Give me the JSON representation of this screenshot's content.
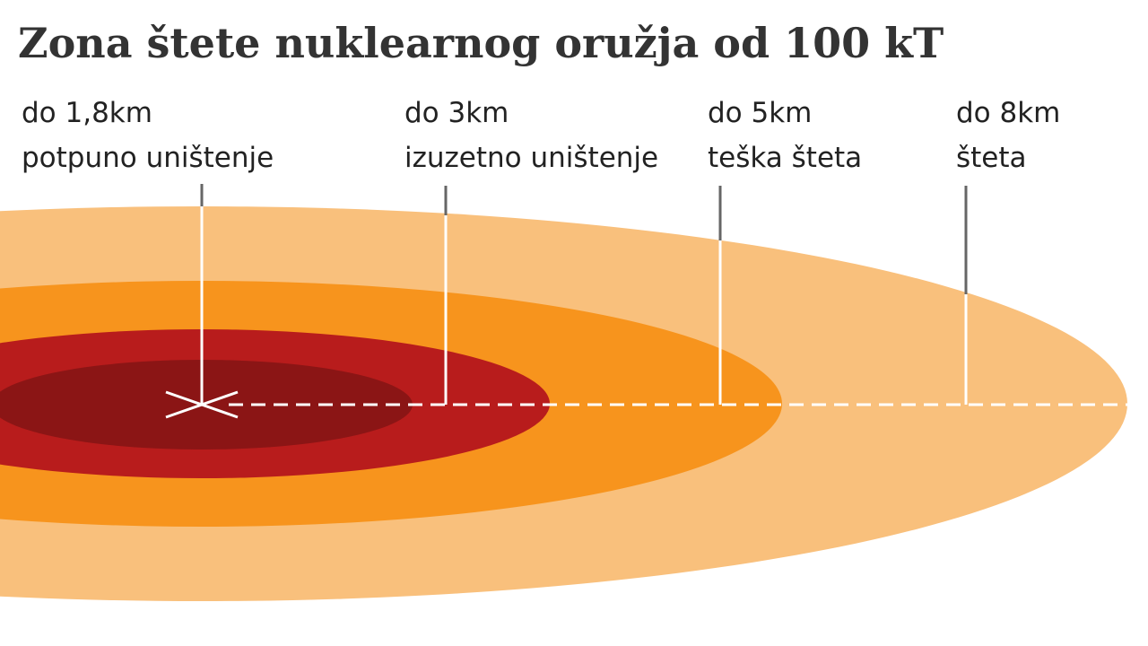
{
  "title": "Zona štete nuklearnog oružja od 100 kT",
  "zones": [
    {
      "distance": "do 1,8km",
      "description": "potpuno uništenje"
    },
    {
      "distance": "do 3km",
      "description": "izuzetno uništenje"
    },
    {
      "distance": "do 5km",
      "description": "teška šteta"
    },
    {
      "distance": "do 8km",
      "description": "šteta"
    }
  ]
}
